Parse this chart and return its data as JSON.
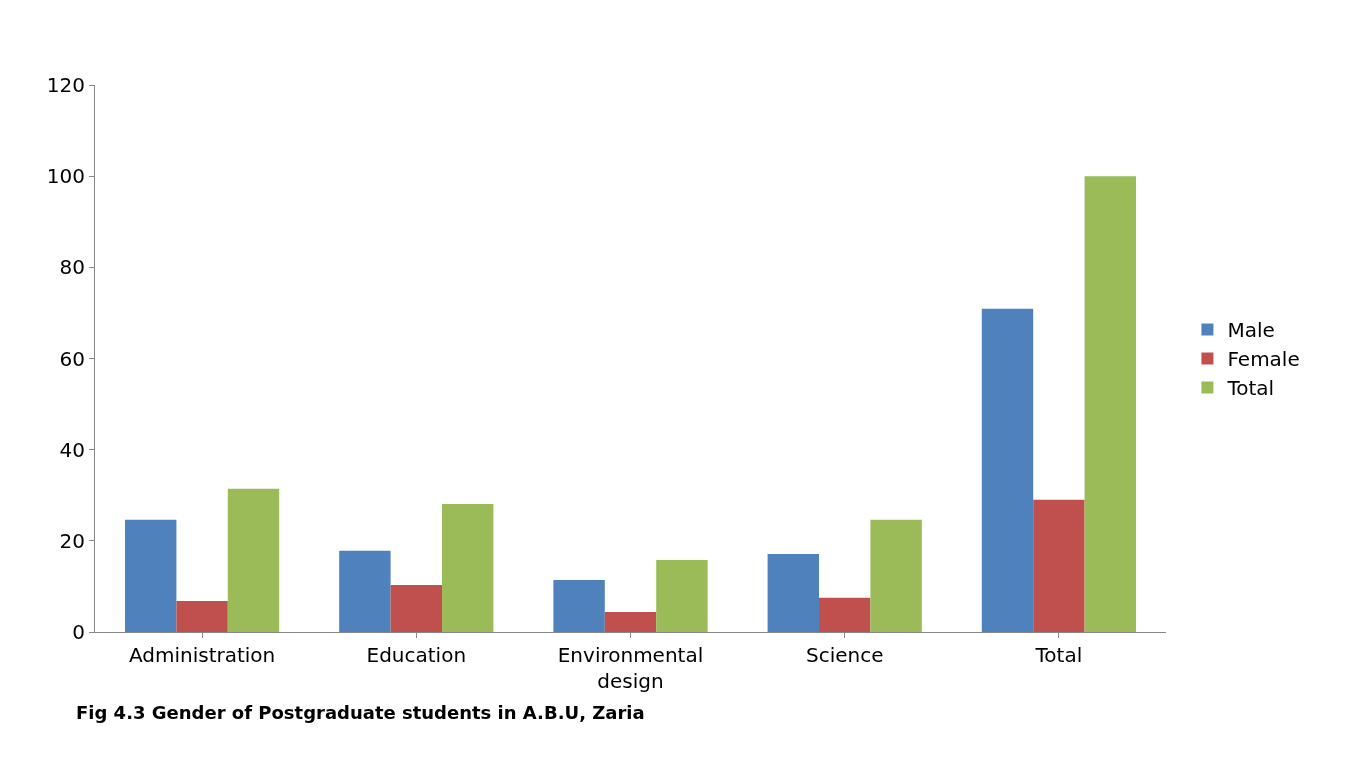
{
  "chart_data": {
    "type": "bar",
    "categories": [
      "Administration",
      "Education",
      "Environmental design",
      "Science",
      "Total"
    ],
    "series": [
      {
        "name": "Male",
        "color": "#4f81bd",
        "values": [
          24.6,
          17.8,
          11.4,
          17.1,
          70.9
        ]
      },
      {
        "name": "Female",
        "color": "#c0504d",
        "values": [
          6.8,
          10.3,
          4.4,
          7.5,
          29.0
        ]
      },
      {
        "name": "Total",
        "color": "#9bbb59",
        "values": [
          31.4,
          28.1,
          15.8,
          24.6,
          100
        ]
      }
    ],
    "ylim": [
      0,
      120
    ],
    "yticks": [
      0,
      20,
      40,
      60,
      80,
      100,
      120
    ],
    "legend": "right",
    "annotations": [
      "Fig 4.3 Gender of Postgraduate students in A.B.U, Zaria"
    ]
  }
}
